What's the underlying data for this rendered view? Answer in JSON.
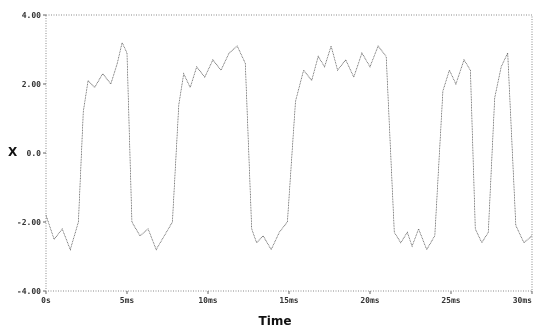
{
  "chart_data": {
    "type": "line",
    "title": "",
    "xlabel": "Time",
    "ylabel": "X",
    "xlim": [
      0,
      30
    ],
    "ylim": [
      -4,
      4
    ],
    "x_ticks": [
      {
        "value": 0,
        "label": "0s"
      },
      {
        "value": 5,
        "label": "5ms"
      },
      {
        "value": 10,
        "label": "10ms"
      },
      {
        "value": 15,
        "label": "15ms"
      },
      {
        "value": 20,
        "label": "20ms"
      },
      {
        "value": 25,
        "label": "25ms"
      },
      {
        "value": 30,
        "label": "30ms"
      }
    ],
    "y_ticks": [
      {
        "value": 4,
        "label": "4.00"
      },
      {
        "value": 2,
        "label": "2.00"
      },
      {
        "value": 0,
        "label": "0.0"
      },
      {
        "value": -2,
        "label": "-2.00"
      },
      {
        "value": -4,
        "label": "-4.00"
      }
    ],
    "grid": false,
    "series": [
      {
        "color": "#555555",
        "x": [
          0,
          0.5,
          1.0,
          1.5,
          2.0,
          2.3,
          2.6,
          3.0,
          3.5,
          4.0,
          4.4,
          4.7,
          5.0,
          5.3,
          5.8,
          6.3,
          6.8,
          7.3,
          7.8,
          8.2,
          8.5,
          8.9,
          9.3,
          9.8,
          10.3,
          10.8,
          11.3,
          11.8,
          12.3,
          12.7,
          13.0,
          13.4,
          13.9,
          14.4,
          14.9,
          15.4,
          15.9,
          16.4,
          16.8,
          17.2,
          17.6,
          18.0,
          18.5,
          19.0,
          19.5,
          20.0,
          20.5,
          21.0,
          21.5,
          21.9,
          22.3,
          22.6,
          23.0,
          23.5,
          24.0,
          24.5,
          24.9,
          25.3,
          25.8,
          26.2,
          26.5,
          26.9,
          27.3,
          27.7,
          28.1,
          28.5,
          29.0,
          29.5,
          30.0
        ],
        "y": [
          -1.8,
          -2.5,
          -2.2,
          -2.8,
          -2.0,
          1.2,
          2.1,
          1.9,
          2.3,
          2.0,
          2.6,
          3.2,
          2.9,
          -2.0,
          -2.4,
          -2.2,
          -2.8,
          -2.4,
          -2.0,
          1.4,
          2.3,
          1.9,
          2.5,
          2.2,
          2.7,
          2.4,
          2.9,
          3.1,
          2.6,
          -2.2,
          -2.6,
          -2.4,
          -2.8,
          -2.3,
          -2.0,
          1.5,
          2.4,
          2.1,
          2.8,
          2.5,
          3.1,
          2.4,
          2.7,
          2.2,
          2.9,
          2.5,
          3.1,
          2.8,
          -2.3,
          -2.6,
          -2.3,
          -2.7,
          -2.2,
          -2.8,
          -2.4,
          1.8,
          2.4,
          2.0,
          2.7,
          2.4,
          -2.2,
          -2.6,
          -2.3,
          1.6,
          2.5,
          2.9,
          -2.1,
          -2.6,
          -2.4
        ]
      }
    ]
  }
}
